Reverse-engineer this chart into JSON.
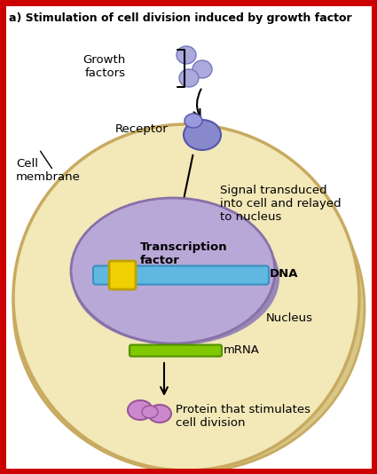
{
  "title": "a) Stimulation of cell division induced by growth factor",
  "bg_color": "#ffffff",
  "border_color": "#cc0000",
  "cell_fill": "#f2e8b8",
  "cell_edge": "#c8aa60",
  "cell_shadow": "#d8c888",
  "nucleus_fill": "#b8a8d8",
  "nucleus_edge": "#8870a8",
  "nucleus_shadow": "#9888b8",
  "dna_fill": "#60b8e0",
  "dna_edge": "#3890c0",
  "tf_fill": "#f0d000",
  "tf_edge": "#c0a000",
  "mrna_fill": "#80c800",
  "mrna_edge": "#509000",
  "receptor_fill": "#8888cc",
  "receptor_edge": "#5555aa",
  "gf_fill": "#aaaadd",
  "gf_edge": "#7777bb",
  "protein_fill": "#cc88cc",
  "protein_edge": "#995599",
  "text_color": "#000000",
  "title_text": "a) Stimulation of cell division induced by growth factor",
  "lbl_growth": "Growth\nfactors",
  "lbl_receptor": "Receptor",
  "lbl_cell_mem": "Cell\nmembrane",
  "lbl_signal": "Signal transduced\ninto cell and relayed\nto nucleus",
  "lbl_tf": "Transcription\nfactor",
  "lbl_dna": "DNA",
  "lbl_nucleus": "Nucleus",
  "lbl_mrna": "mRNA",
  "lbl_protein": "Protein that stimulates\ncell division"
}
